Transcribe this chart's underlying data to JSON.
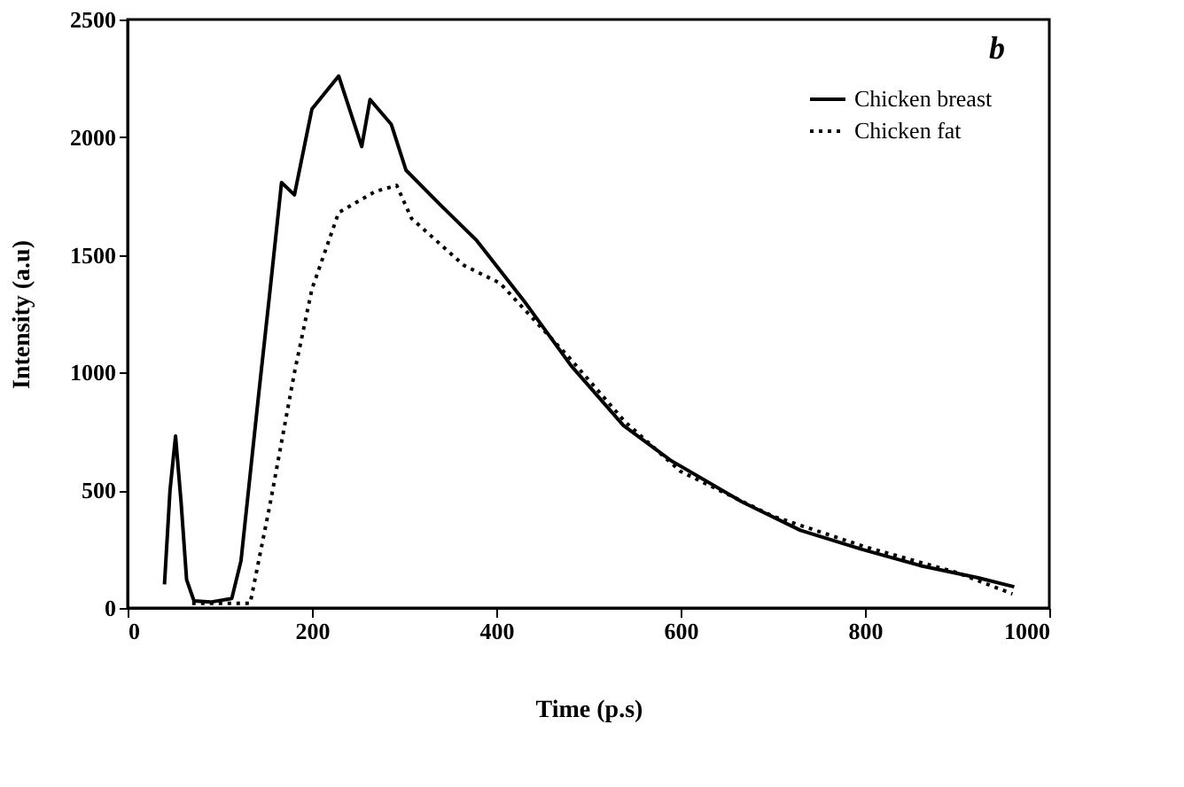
{
  "chart_data": {
    "type": "line",
    "xlabel": "Time (p.s)",
    "ylabel": "Intensity (a.u)",
    "annotations": [
      "b"
    ],
    "xlim": [
      0,
      1000
    ],
    "ylim": [
      0,
      2500
    ],
    "xticks": [
      0,
      200,
      400,
      600,
      800,
      1000
    ],
    "yticks": [
      0,
      500,
      1000,
      1500,
      2000,
      2500
    ],
    "grid": false,
    "legend": "top right",
    "series": [
      {
        "name": "Chicken breast",
        "color": "#000000",
        "line_style": "solid",
        "x": [
          40,
          46,
          52,
          58,
          64,
          72,
          90,
          113,
          123,
          142,
          154,
          167,
          181,
          200,
          229,
          254,
          263,
          286,
          302,
          340,
          379,
          430,
          481,
          538,
          590,
          667,
          730,
          796,
          860,
          923,
          962
        ],
        "values": [
          100,
          500,
          730,
          450,
          120,
          30,
          25,
          40,
          200,
          900,
          1330,
          1807,
          1755,
          2120,
          2260,
          1960,
          2160,
          2055,
          1860,
          1710,
          1560,
          1305,
          1030,
          775,
          625,
          450,
          330,
          250,
          180,
          128,
          90
        ]
      },
      {
        "name": "Chicken fat",
        "color": "#000000",
        "line_style": "dotted",
        "x": [
          70,
          100,
          133,
          154,
          181,
          200,
          229,
          269,
          292,
          308,
          365,
          404,
          480,
          540,
          600,
          700,
          800,
          900,
          960
        ],
        "values": [
          20,
          20,
          20,
          430,
          1000,
          1355,
          1680,
          1770,
          1795,
          1655,
          1455,
          1380,
          1060,
          790,
          580,
          390,
          260,
          150,
          60
        ]
      }
    ]
  }
}
